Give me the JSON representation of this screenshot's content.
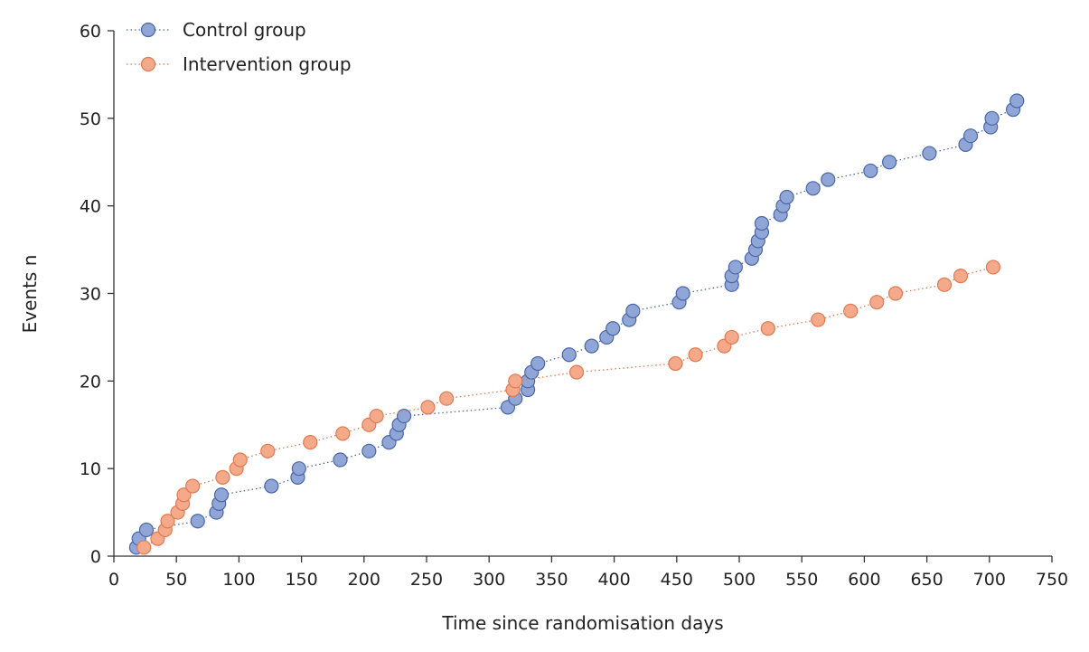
{
  "chart_data": {
    "type": "scatter",
    "title": "",
    "xlabel": "Time since randomisation days",
    "ylabel": "Events n",
    "xlim": [
      0,
      750
    ],
    "ylim": [
      0,
      60
    ],
    "xticks": [
      0,
      50,
      100,
      150,
      200,
      250,
      300,
      350,
      400,
      450,
      500,
      550,
      600,
      650,
      700,
      750
    ],
    "yticks": [
      0,
      10,
      20,
      30,
      40,
      50,
      60
    ],
    "grid": false,
    "legend_position": "top-left",
    "series": [
      {
        "name": "Control group",
        "color": "#8fa6d6",
        "edge_color": "#4a66a8",
        "line_style": "dotted",
        "points": [
          [
            18,
            1
          ],
          [
            20,
            2
          ],
          [
            26,
            3
          ],
          [
            67,
            4
          ],
          [
            82,
            5
          ],
          [
            84,
            6
          ],
          [
            86,
            7
          ],
          [
            126,
            8
          ],
          [
            147,
            9
          ],
          [
            148,
            10
          ],
          [
            181,
            11
          ],
          [
            204,
            12
          ],
          [
            220,
            13
          ],
          [
            226,
            14
          ],
          [
            228,
            15
          ],
          [
            232,
            16
          ],
          [
            315,
            17
          ],
          [
            321,
            18
          ],
          [
            331,
            19
          ],
          [
            331,
            20
          ],
          [
            334,
            21
          ],
          [
            339,
            22
          ],
          [
            364,
            23
          ],
          [
            382,
            24
          ],
          [
            394,
            25
          ],
          [
            399,
            26
          ],
          [
            412,
            27
          ],
          [
            415,
            28
          ],
          [
            452,
            29
          ],
          [
            455,
            30
          ],
          [
            494,
            31
          ],
          [
            494,
            32
          ],
          [
            497,
            33
          ],
          [
            510,
            34
          ],
          [
            513,
            35
          ],
          [
            515,
            36
          ],
          [
            518,
            37
          ],
          [
            518,
            38
          ],
          [
            533,
            39
          ],
          [
            535,
            40
          ],
          [
            538,
            41
          ],
          [
            559,
            42
          ],
          [
            571,
            43
          ],
          [
            605,
            44
          ],
          [
            620,
            45
          ],
          [
            652,
            46
          ],
          [
            681,
            47
          ],
          [
            685,
            48
          ],
          [
            701,
            49
          ],
          [
            702,
            50
          ],
          [
            719,
            51
          ],
          [
            722,
            52
          ]
        ]
      },
      {
        "name": "Intervention group",
        "color": "#f3a98a",
        "edge_color": "#e07a4f",
        "line_style": "dotted",
        "points": [
          [
            24,
            1
          ],
          [
            35,
            2
          ],
          [
            41,
            3
          ],
          [
            43,
            4
          ],
          [
            51,
            5
          ],
          [
            55,
            6
          ],
          [
            56,
            7
          ],
          [
            63,
            8
          ],
          [
            87,
            9
          ],
          [
            98,
            10
          ],
          [
            101,
            11
          ],
          [
            123,
            12
          ],
          [
            157,
            13
          ],
          [
            183,
            14
          ],
          [
            204,
            15
          ],
          [
            210,
            16
          ],
          [
            251,
            17
          ],
          [
            266,
            18
          ],
          [
            319,
            19
          ],
          [
            321,
            20
          ],
          [
            370,
            21
          ],
          [
            449,
            22
          ],
          [
            465,
            23
          ],
          [
            488,
            24
          ],
          [
            494,
            25
          ],
          [
            523,
            26
          ],
          [
            563,
            27
          ],
          [
            589,
            28
          ],
          [
            610,
            29
          ],
          [
            625,
            30
          ],
          [
            664,
            31
          ],
          [
            677,
            32
          ],
          [
            703,
            33
          ]
        ]
      }
    ]
  }
}
